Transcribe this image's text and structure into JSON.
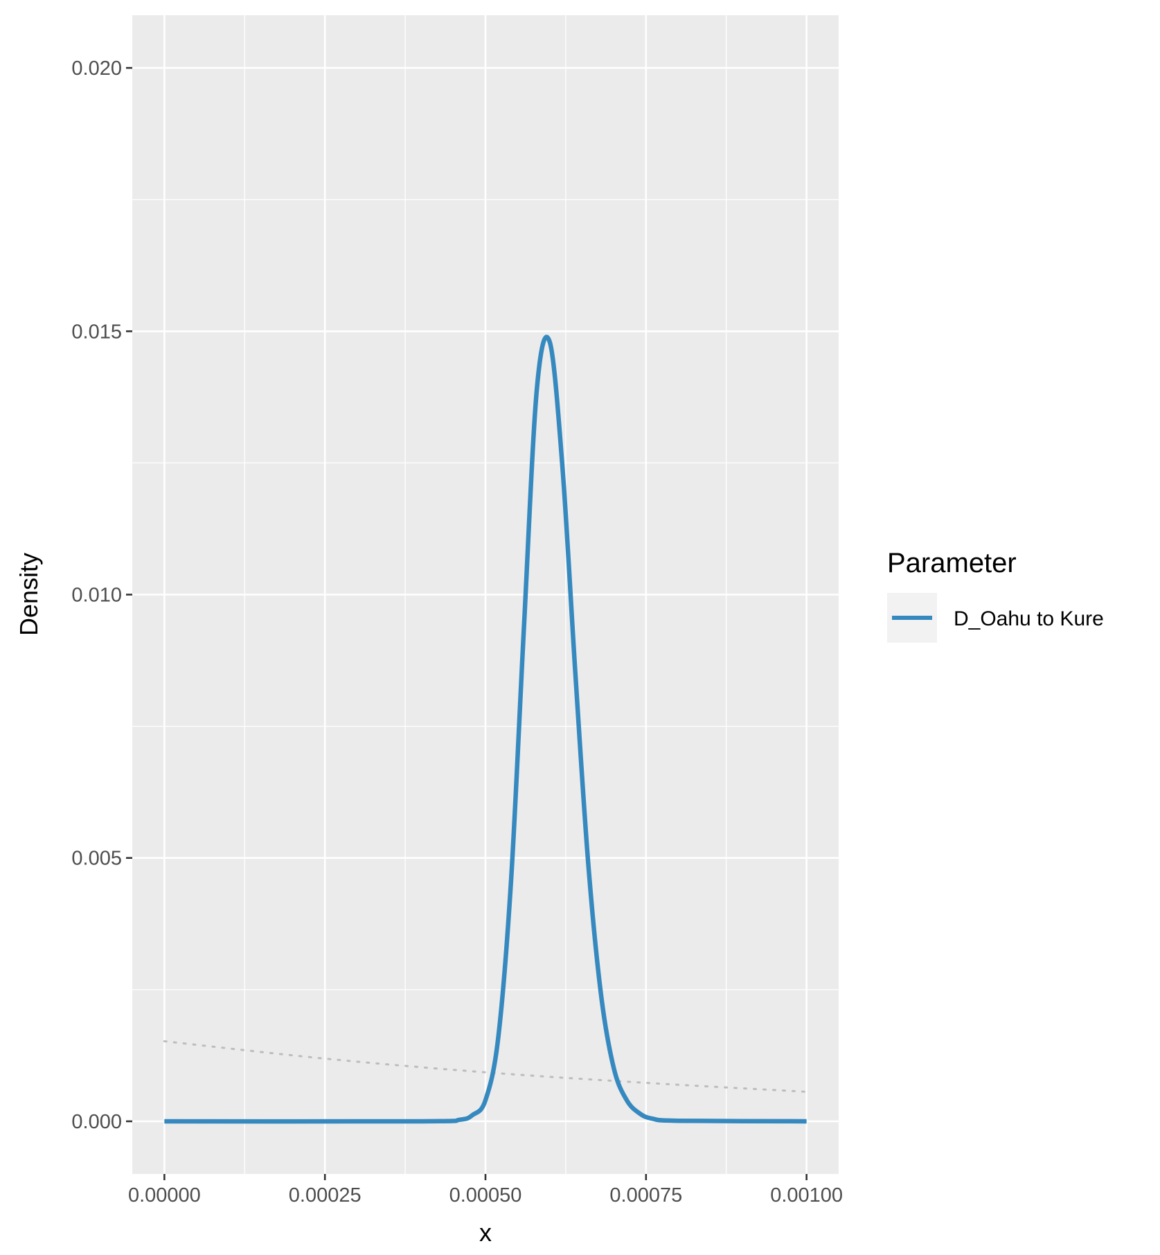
{
  "chart_data": {
    "type": "line",
    "xlabel": "x",
    "ylabel": "Density",
    "xlim": [
      -5e-05,
      0.00105
    ],
    "ylim": [
      -0.001,
      0.021
    ],
    "x_ticks": [
      0,
      0.00025,
      0.0005,
      0.00075,
      0.001
    ],
    "x_tick_labels": [
      "0.00000",
      "0.00025",
      "0.00050",
      "0.00075",
      "0.00100"
    ],
    "y_ticks": [
      0,
      0.005,
      0.01,
      0.015,
      0.02
    ],
    "y_tick_labels": [
      "0.000",
      "0.005",
      "0.010",
      "0.015",
      "0.020"
    ],
    "grid": true,
    "legend": {
      "title": "Parameter",
      "position": "right",
      "entries": [
        "D_Oahu to Kure"
      ]
    },
    "series": [
      {
        "name": "D_Oahu to Kure",
        "color": "#3689bf",
        "style": "solid",
        "x": [
          0,
          0.0004,
          0.00046,
          0.00048,
          0.0005,
          0.00052,
          0.00054,
          0.00056,
          0.00058,
          0.0006,
          0.00062,
          0.00064,
          0.00066,
          0.00068,
          0.0007,
          0.00072,
          0.00074,
          0.00076,
          0.0008,
          0.001
        ],
        "y": [
          0,
          0,
          3e-05,
          0.00012,
          0.0004,
          0.0016,
          0.0046,
          0.0094,
          0.0139,
          0.0148,
          0.0124,
          0.0085,
          0.0049,
          0.0024,
          0.001,
          0.0004,
          0.00015,
          5e-05,
          1e-05,
          0
        ]
      },
      {
        "name": "",
        "color": "#bdbdbd",
        "style": "dotted",
        "x": [
          0,
          0.00025,
          0.0005,
          0.00075,
          0.001
        ],
        "y": [
          0.00152,
          0.00119,
          0.00093,
          0.00073,
          0.00056
        ]
      }
    ]
  }
}
